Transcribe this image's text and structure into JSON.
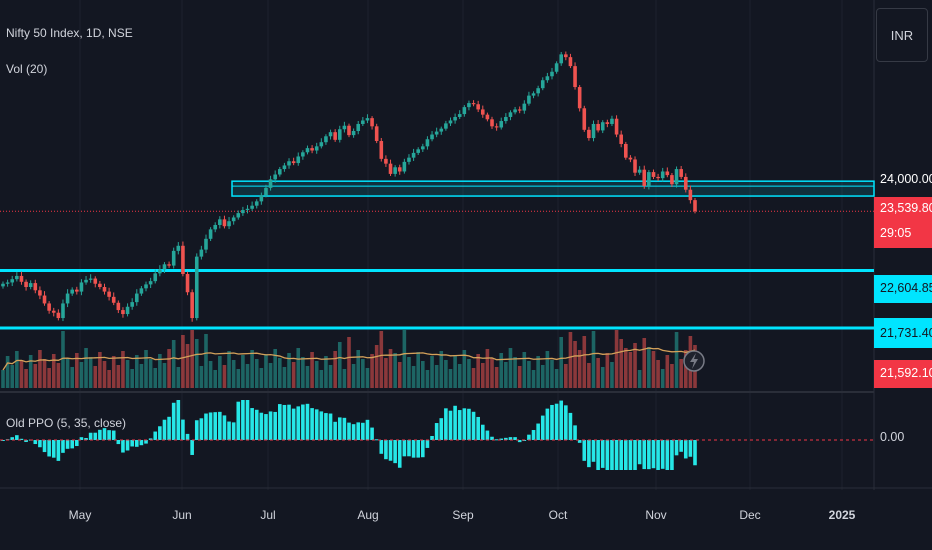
{
  "legend": {
    "symbol": "Nifty 50 Index, 1D, NSE",
    "volume": "Vol (20)",
    "ppo": "Old PPO (5, 35, close)"
  },
  "currency_button": "INR",
  "price_labels": {
    "level_top": "24,000.00",
    "last_price": "23,539.80",
    "countdown": "29:05",
    "level_mid": "22,604.85",
    "level_low": "21,731.40",
    "prev_close": "21,592.10",
    "ppo_zero": "0.00"
  },
  "months": [
    "May",
    "Jun",
    "Jul",
    "Aug",
    "Sep",
    "Oct",
    "Nov",
    "Dec",
    "2025"
  ],
  "colors": {
    "background": "#131722",
    "up": "#26a69a",
    "down": "#ef5350",
    "zone": "#00e5ff",
    "last_price_bg": "#f23645",
    "volume_ma": "#d4a15a",
    "ppo": "#26e7e7"
  },
  "chart_data": {
    "type": "candlestick",
    "y_scale": "log",
    "levels": [
      24000,
      22604.85,
      21731.4
    ],
    "zone": [
      23950,
      24030
    ],
    "last_price": 23539.8,
    "closes": [
      22400,
      22420,
      22470,
      22520,
      22430,
      22350,
      22410,
      22300,
      22220,
      22100,
      21990,
      21960,
      21880,
      22100,
      22250,
      22310,
      22280,
      22420,
      22460,
      22480,
      22400,
      22350,
      22280,
      22200,
      22110,
      22000,
      21940,
      22050,
      22120,
      22250,
      22330,
      22390,
      22440,
      22560,
      22620,
      22700,
      22680,
      22910,
      22990,
      22550,
      22270,
      21880,
      22820,
      22930,
      23100,
      23250,
      23320,
      23410,
      23300,
      23380,
      23440,
      23510,
      23560,
      23580,
      23630,
      23700,
      23800,
      23920,
      24060,
      24140,
      24230,
      24290,
      24360,
      24330,
      24440,
      24510,
      24580,
      24540,
      24610,
      24680,
      24780,
      24850,
      24720,
      24900,
      24960,
      24800,
      24870,
      24990,
      25050,
      25090,
      24950,
      24700,
      24400,
      24320,
      24150,
      24260,
      24190,
      24350,
      24420,
      24500,
      24560,
      24610,
      24730,
      24810,
      24860,
      24910,
      25000,
      25050,
      25110,
      25160,
      25280,
      25350,
      25330,
      25240,
      25150,
      25070,
      24950,
      24930,
      25040,
      25110,
      25190,
      25240,
      25220,
      25340,
      25480,
      25520,
      25610,
      25750,
      25820,
      25900,
      26050,
      26210,
      26160,
      26000,
      25630,
      25260,
      24890,
      24750,
      24990,
      24880,
      25020,
      24990,
      25080,
      24810,
      24650,
      24420,
      24390,
      24170,
      24220,
      23950,
      24180,
      24100,
      24080,
      24190,
      24130,
      23980,
      24230,
      24100,
      23890,
      23720,
      23540
    ]
  }
}
